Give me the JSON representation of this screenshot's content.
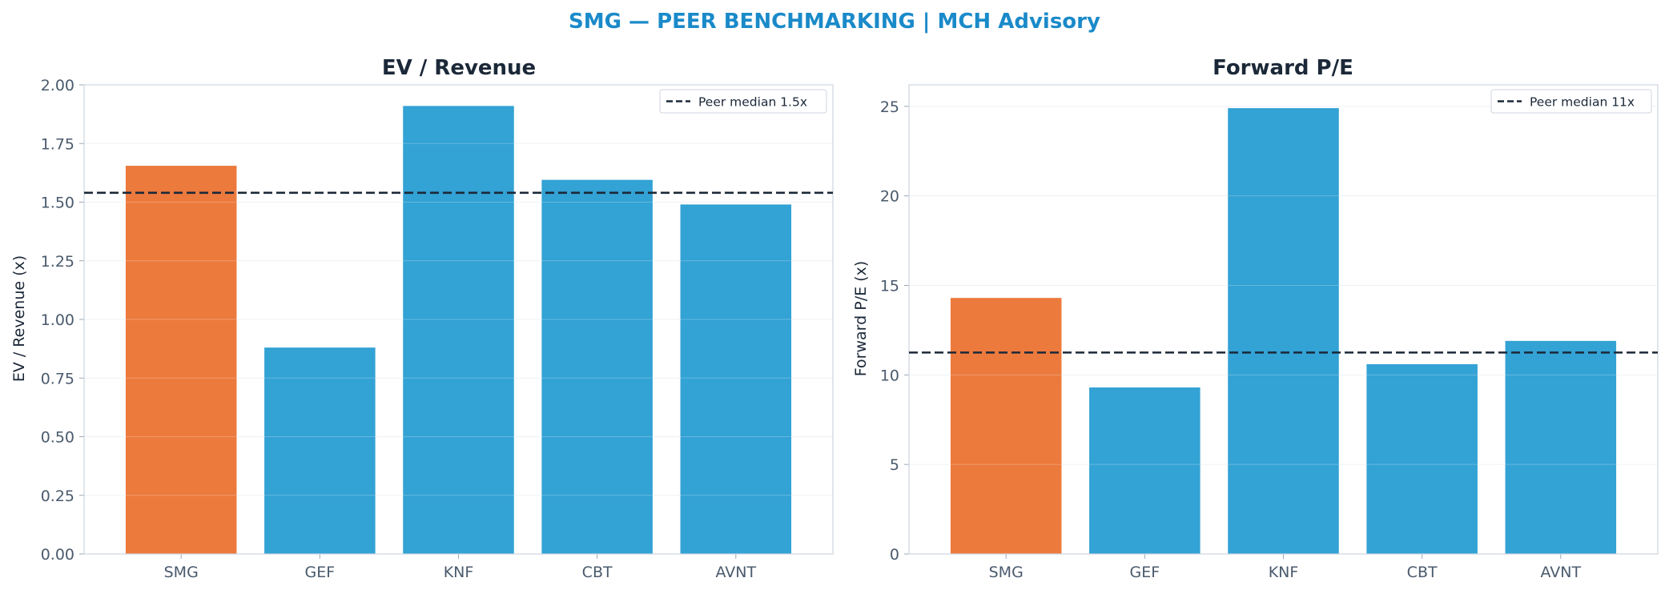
{
  "title": "SMG — PEER BENCHMARKING | MCH Advisory",
  "colors": {
    "highlight": "#ec7a3d",
    "peer": "#33a2d4",
    "median_line": "#1b2838",
    "title": "#1a8ac9"
  },
  "chart_data": [
    {
      "type": "bar",
      "title": "EV / Revenue",
      "ylabel": "EV / Revenue (x)",
      "categories": [
        "SMG",
        "GEF",
        "KNF",
        "CBT",
        "AVNT"
      ],
      "values": [
        1.655,
        0.88,
        1.91,
        1.595,
        1.49
      ],
      "highlight": "SMG",
      "ylim": [
        0,
        2.0
      ],
      "yticks": [
        0,
        0.25,
        0.5,
        0.75,
        1.0,
        1.25,
        1.5,
        1.75,
        2.0
      ],
      "ytick_labels": [
        "0.00",
        "0.25",
        "0.50",
        "0.75",
        "1.00",
        "1.25",
        "1.50",
        "1.75",
        "2.00"
      ],
      "reference_line": {
        "value": 1.54,
        "label": "Peer median 1.5x",
        "style": "dashed"
      },
      "legend": "top-right",
      "grid": true
    },
    {
      "type": "bar",
      "title": "Forward P/E",
      "ylabel": "Forward P/E (x)",
      "categories": [
        "SMG",
        "GEF",
        "KNF",
        "CBT",
        "AVNT"
      ],
      "values": [
        14.3,
        9.3,
        24.9,
        10.6,
        11.9
      ],
      "highlight": "SMG",
      "ylim": [
        0,
        26.2
      ],
      "yticks": [
        0,
        5,
        10,
        15,
        20,
        25
      ],
      "ytick_labels": [
        "0",
        "5",
        "10",
        "15",
        "20",
        "25"
      ],
      "reference_line": {
        "value": 11.25,
        "label": "Peer median 11x",
        "style": "dashed"
      },
      "legend": "top-right",
      "grid": true
    }
  ]
}
